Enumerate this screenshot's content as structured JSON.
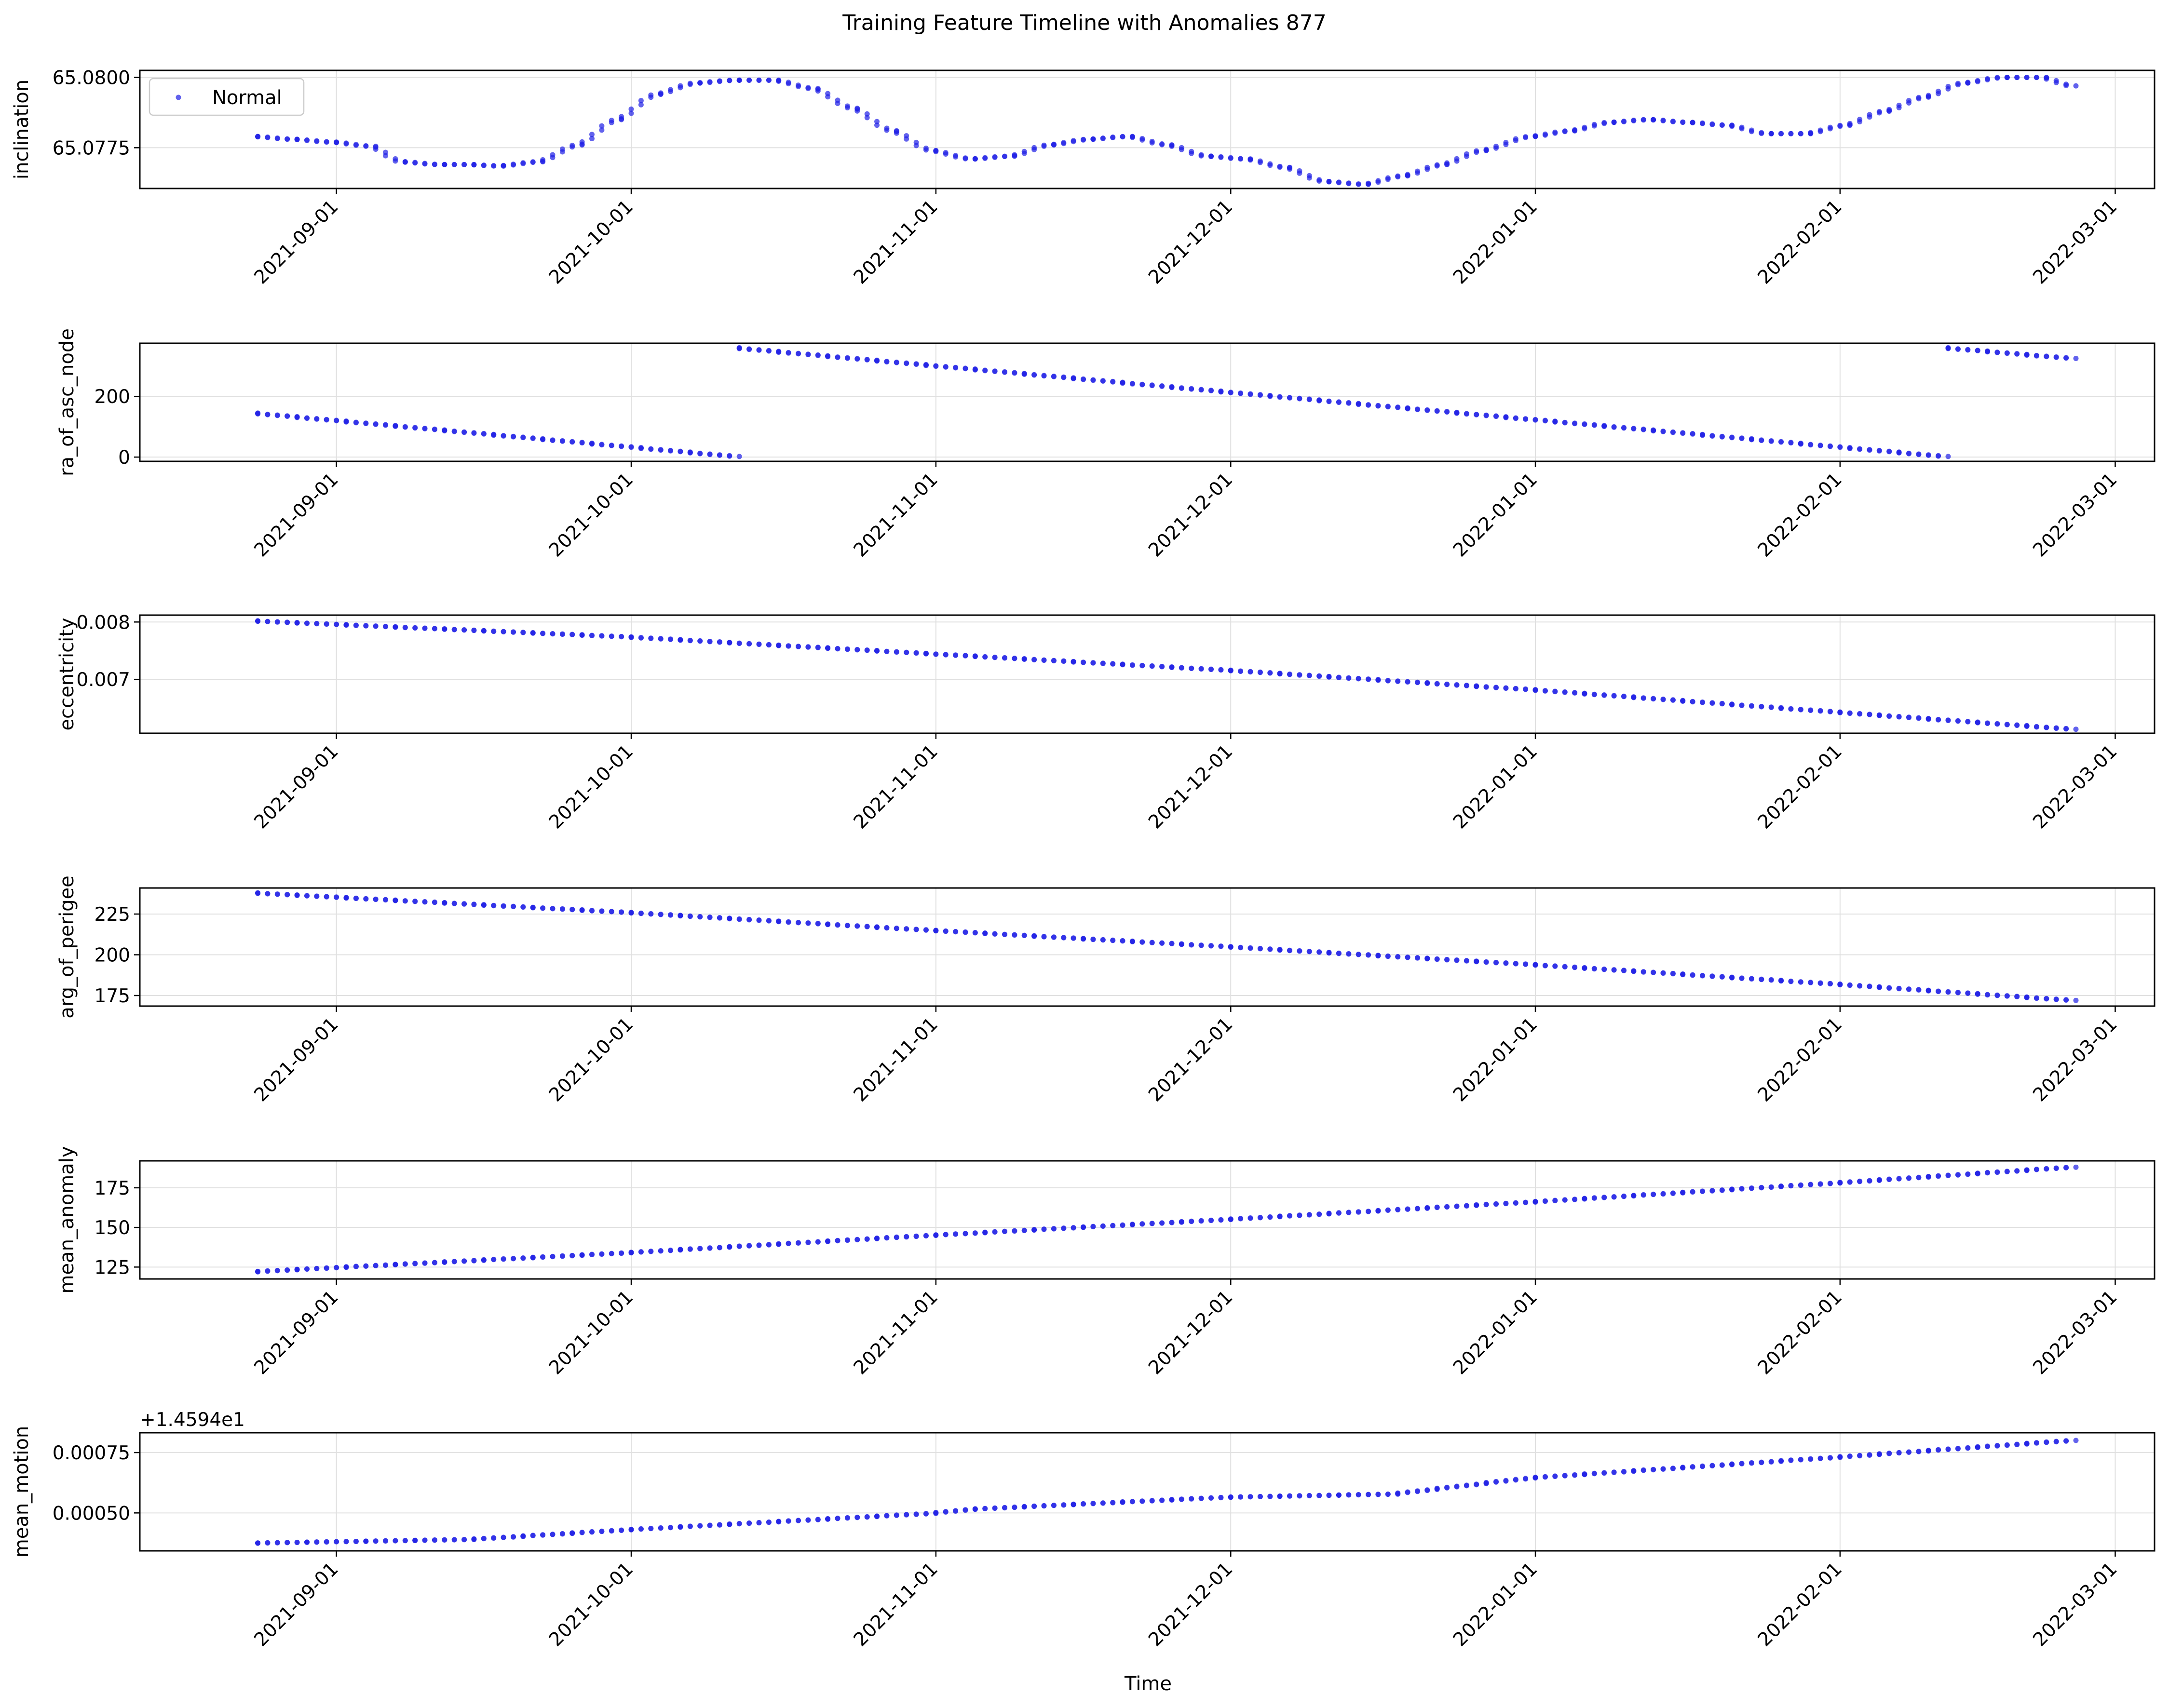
{
  "figure": {
    "title": "Training Feature Timeline with Anomalies 877",
    "xlabel": "Time"
  },
  "legend": {
    "label": "Normal"
  },
  "colors": {
    "points": "#1f1fe6",
    "axes": "#000000",
    "grid": "#e0e0e0"
  },
  "chart_data": [
    {
      "type": "scatter",
      "name": "inclination",
      "ylabel": "inclination",
      "ylim": [
        65.07605,
        65.08025
      ],
      "yticks": [
        65.0775,
        65.08
      ],
      "ytick_labels": [
        "65.0775",
        "65.0800"
      ],
      "xlim": [
        "2021-08-12",
        "2022-03-05"
      ],
      "xticks": [
        "2021-09-01",
        "2021-10-01",
        "2021-11-01",
        "2021-12-01",
        "2022-01-01",
        "2022-02-01",
        "2022-03-01"
      ],
      "grid": true,
      "legend": "upper-left",
      "series": [
        {
          "name": "Normal",
          "points": [
            [
              "2021-08-24",
              65.0779
            ],
            [
              "2021-08-28",
              65.0778
            ],
            [
              "2021-09-01",
              65.0777
            ],
            [
              "2021-09-05",
              65.07755
            ],
            [
              "2021-09-08",
              65.077
            ],
            [
              "2021-09-12",
              65.0769
            ],
            [
              "2021-09-15",
              65.0769
            ],
            [
              "2021-09-18",
              65.07685
            ],
            [
              "2021-09-22",
              65.077
            ],
            [
              "2021-09-26",
              65.0776
            ],
            [
              "2021-09-30",
              65.0785
            ],
            [
              "2021-10-04",
              65.0794
            ],
            [
              "2021-10-08",
              65.0798
            ],
            [
              "2021-10-12",
              65.0799
            ],
            [
              "2021-10-16",
              65.0799
            ],
            [
              "2021-10-20",
              65.0796
            ],
            [
              "2021-10-24",
              65.0789
            ],
            [
              "2021-10-28",
              65.0781
            ],
            [
              "2021-11-01",
              65.0774
            ],
            [
              "2021-11-05",
              65.0771
            ],
            [
              "2021-11-09",
              65.0772
            ],
            [
              "2021-11-13",
              65.0776
            ],
            [
              "2021-11-17",
              65.0778
            ],
            [
              "2021-11-21",
              65.0779
            ],
            [
              "2021-11-25",
              65.0776
            ],
            [
              "2021-11-29",
              65.0772
            ],
            [
              "2021-12-03",
              65.0771
            ],
            [
              "2021-12-07",
              65.0768
            ],
            [
              "2021-12-11",
              65.0763
            ],
            [
              "2021-12-15",
              65.0762
            ],
            [
              "2021-12-19",
              65.0765
            ],
            [
              "2021-12-23",
              65.0769
            ],
            [
              "2021-12-27",
              65.0774
            ],
            [
              "2022-01-01",
              65.0779
            ],
            [
              "2022-01-05",
              65.0781
            ],
            [
              "2022-01-09",
              65.0784
            ],
            [
              "2022-01-13",
              65.0785
            ],
            [
              "2022-01-17",
              65.0784
            ],
            [
              "2022-01-21",
              65.0783
            ],
            [
              "2022-01-25",
              65.078
            ],
            [
              "2022-01-29",
              65.078
            ],
            [
              "2022-02-02",
              65.0783
            ],
            [
              "2022-02-06",
              65.0788
            ],
            [
              "2022-02-10",
              65.0793
            ],
            [
              "2022-02-14",
              65.0798
            ],
            [
              "2022-02-18",
              65.08
            ],
            [
              "2022-02-22",
              65.08
            ],
            [
              "2022-02-25",
              65.0797
            ]
          ]
        }
      ]
    },
    {
      "type": "scatter",
      "name": "ra_of_asc_node",
      "ylabel": "ra_of_asc_node",
      "ylim": [
        -14,
        375
      ],
      "yticks": [
        0,
        200
      ],
      "ytick_labels": [
        "0",
        "200"
      ],
      "xlim": [
        "2021-08-12",
        "2022-03-05"
      ],
      "xticks": [
        "2021-09-01",
        "2021-10-01",
        "2021-11-01",
        "2021-12-01",
        "2022-01-01",
        "2022-02-01",
        "2022-03-01"
      ],
      "grid": true,
      "series": [
        {
          "name": "Normal",
          "segments": [
            [
              [
                "2021-08-24",
                145
              ],
              [
                "2021-10-12",
                2
              ]
            ],
            [
              [
                "2021-10-12",
                360
              ],
              [
                "2022-02-12",
                2
              ]
            ],
            [
              [
                "2022-02-12",
                360
              ],
              [
                "2022-02-25",
                325
              ]
            ]
          ]
        }
      ]
    },
    {
      "type": "scatter",
      "name": "eccentricity",
      "ylabel": "eccentricity",
      "ylim": [
        0.00606,
        0.00812
      ],
      "yticks": [
        0.007,
        0.008
      ],
      "ytick_labels": [
        "0.007",
        "0.008"
      ],
      "xlim": [
        "2021-08-12",
        "2022-03-05"
      ],
      "xticks": [
        "2021-09-01",
        "2021-10-01",
        "2021-11-01",
        "2021-12-01",
        "2022-01-01",
        "2022-02-01",
        "2022-03-01"
      ],
      "grid": true,
      "series": [
        {
          "name": "Normal",
          "segments": [
            [
              [
                "2021-08-24",
                0.00802
              ],
              [
                "2021-10-01",
                0.00774
              ],
              [
                "2021-12-01",
                0.00716
              ],
              [
                "2022-01-01",
                0.00682
              ],
              [
                "2022-02-01",
                0.00643
              ],
              [
                "2022-02-25",
                0.00613
              ]
            ]
          ]
        }
      ]
    },
    {
      "type": "scatter",
      "name": "arg_of_perigee",
      "ylabel": "arg_of_perigee",
      "ylim": [
        168.5,
        241
      ],
      "yticks": [
        175,
        200,
        225
      ],
      "ytick_labels": [
        "175",
        "200",
        "225"
      ],
      "xlim": [
        "2021-08-12",
        "2022-03-05"
      ],
      "xticks": [
        "2021-09-01",
        "2021-10-01",
        "2021-11-01",
        "2021-12-01",
        "2022-01-01",
        "2022-02-01",
        "2022-03-01"
      ],
      "grid": true,
      "series": [
        {
          "name": "Normal",
          "segments": [
            [
              [
                "2021-08-24",
                238
              ],
              [
                "2021-10-01",
                226
              ],
              [
                "2021-11-01",
                215
              ],
              [
                "2021-12-01",
                205
              ],
              [
                "2022-01-01",
                194
              ],
              [
                "2022-02-01",
                182
              ],
              [
                "2022-02-25",
                172
              ]
            ]
          ]
        }
      ]
    },
    {
      "type": "scatter",
      "name": "mean_anomaly",
      "ylabel": "mean_anomaly",
      "ylim": [
        117.5,
        192
      ],
      "yticks": [
        125,
        150,
        175
      ],
      "ytick_labels": [
        "125",
        "150",
        "175"
      ],
      "xlim": [
        "2021-08-12",
        "2022-03-05"
      ],
      "xticks": [
        "2021-09-01",
        "2021-10-01",
        "2021-11-01",
        "2021-12-01",
        "2022-01-01",
        "2022-02-01",
        "2022-03-01"
      ],
      "grid": true,
      "series": [
        {
          "name": "Normal",
          "segments": [
            [
              [
                "2021-08-24",
                122
              ],
              [
                "2021-10-01",
                134
              ],
              [
                "2021-11-01",
                145
              ],
              [
                "2021-12-01",
                155
              ],
              [
                "2022-01-01",
                166
              ],
              [
                "2022-02-01",
                178
              ],
              [
                "2022-02-25",
                188
              ]
            ]
          ]
        }
      ]
    },
    {
      "type": "scatter",
      "name": "mean_motion",
      "ylabel": "mean_motion",
      "offset_text": "+1.4594e1",
      "ylim": [
        0.000343,
        0.000832
      ],
      "yticks": [
        0.0005,
        0.00075
      ],
      "ytick_labels": [
        "0.00050",
        "0.00075"
      ],
      "xlim": [
        "2021-08-12",
        "2022-03-05"
      ],
      "xticks": [
        "2021-09-01",
        "2021-10-01",
        "2021-11-01",
        "2021-12-01",
        "2022-01-01",
        "2022-02-01",
        "2022-03-01"
      ],
      "grid": true,
      "series": [
        {
          "name": "Normal",
          "segments": [
            [
              [
                "2021-08-24",
                0.000375
              ],
              [
                "2021-09-15",
                0.00039
              ],
              [
                "2021-10-01",
                0.00043
              ],
              [
                "2021-11-01",
                0.000498
              ],
              [
                "2021-11-05",
                0.000515
              ],
              [
                "2021-12-01",
                0.000565
              ],
              [
                "2021-12-18",
                0.000578
              ],
              [
                "2022-01-01",
                0.000645
              ],
              [
                "2022-02-01",
                0.00073
              ],
              [
                "2022-02-25",
                0.0008
              ]
            ]
          ]
        }
      ]
    }
  ]
}
